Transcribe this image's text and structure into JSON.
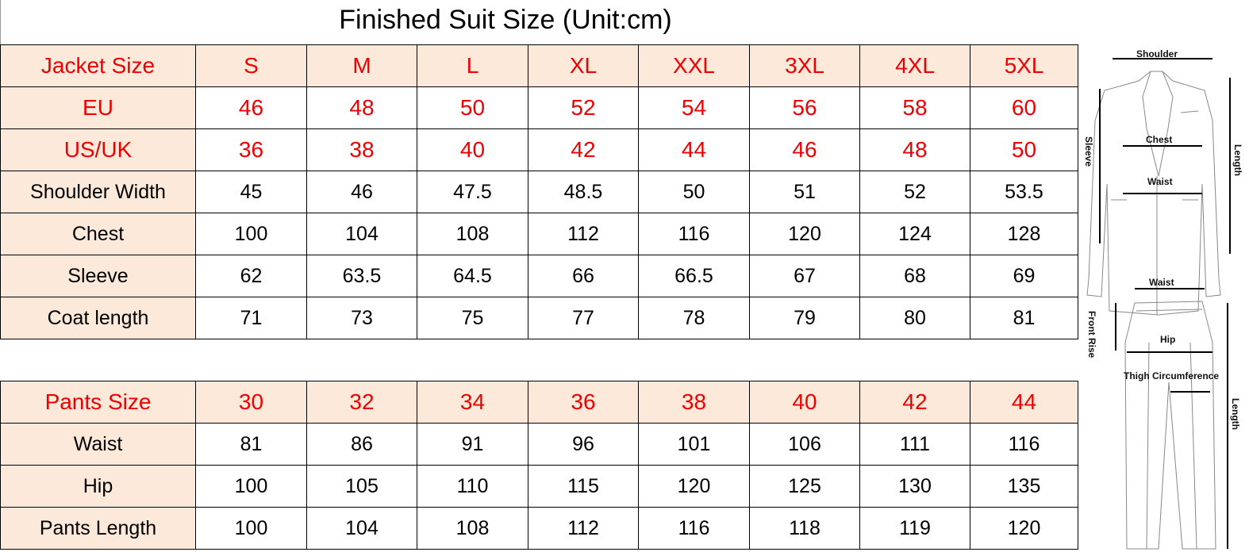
{
  "title": "Finished Suit Size  (Unit:cm)",
  "jacket": {
    "header": [
      "Jacket Size",
      "S",
      "M",
      "L",
      "XL",
      "XXL",
      "3XL",
      "4XL",
      "5XL"
    ],
    "rows": [
      {
        "label": "EU",
        "values": [
          "46",
          "48",
          "50",
          "52",
          "54",
          "56",
          "58",
          "60"
        ],
        "red": true
      },
      {
        "label": "US/UK",
        "values": [
          "36",
          "38",
          "40",
          "42",
          "44",
          "46",
          "48",
          "50"
        ],
        "red": true
      },
      {
        "label": "Shoulder Width",
        "values": [
          "45",
          "46",
          "47.5",
          "48.5",
          "50",
          "51",
          "52",
          "53.5"
        ]
      },
      {
        "label": "Chest",
        "values": [
          "100",
          "104",
          "108",
          "112",
          "116",
          "120",
          "124",
          "128"
        ]
      },
      {
        "label": "Sleeve",
        "values": [
          "62",
          "63.5",
          "64.5",
          "66",
          "66.5",
          "67",
          "68",
          "69"
        ]
      },
      {
        "label": "Coat length",
        "values": [
          "71",
          "73",
          "75",
          "77",
          "78",
          "79",
          "80",
          "81"
        ]
      }
    ]
  },
  "pants": {
    "header": [
      "Pants Size",
      "30",
      "32",
      "34",
      "36",
      "38",
      "40",
      "42",
      "44"
    ],
    "rows": [
      {
        "label": "Waist",
        "values": [
          "81",
          "86",
          "91",
          "96",
          "101",
          "106",
          "111",
          "116"
        ]
      },
      {
        "label": "Hip",
        "values": [
          "100",
          "105",
          "110",
          "115",
          "120",
          "125",
          "130",
          "135"
        ]
      },
      {
        "label": "Pants Length",
        "values": [
          "100",
          "104",
          "108",
          "112",
          "116",
          "118",
          "119",
          "120"
        ]
      }
    ]
  },
  "diagram": {
    "jacket_labels": {
      "shoulder": "Shoulder",
      "chest": "Chest",
      "waist": "Waist",
      "sleeve": "Sleeve",
      "length": "Length"
    },
    "pants_labels": {
      "waist": "Waist",
      "front_rise": "Front Rise",
      "hip": "Hip",
      "thigh": "Thigh Circumference",
      "length": "Length"
    }
  },
  "colors": {
    "header_bg": "#fde9d9",
    "red_text": "#ee0000",
    "border": "#000000"
  }
}
